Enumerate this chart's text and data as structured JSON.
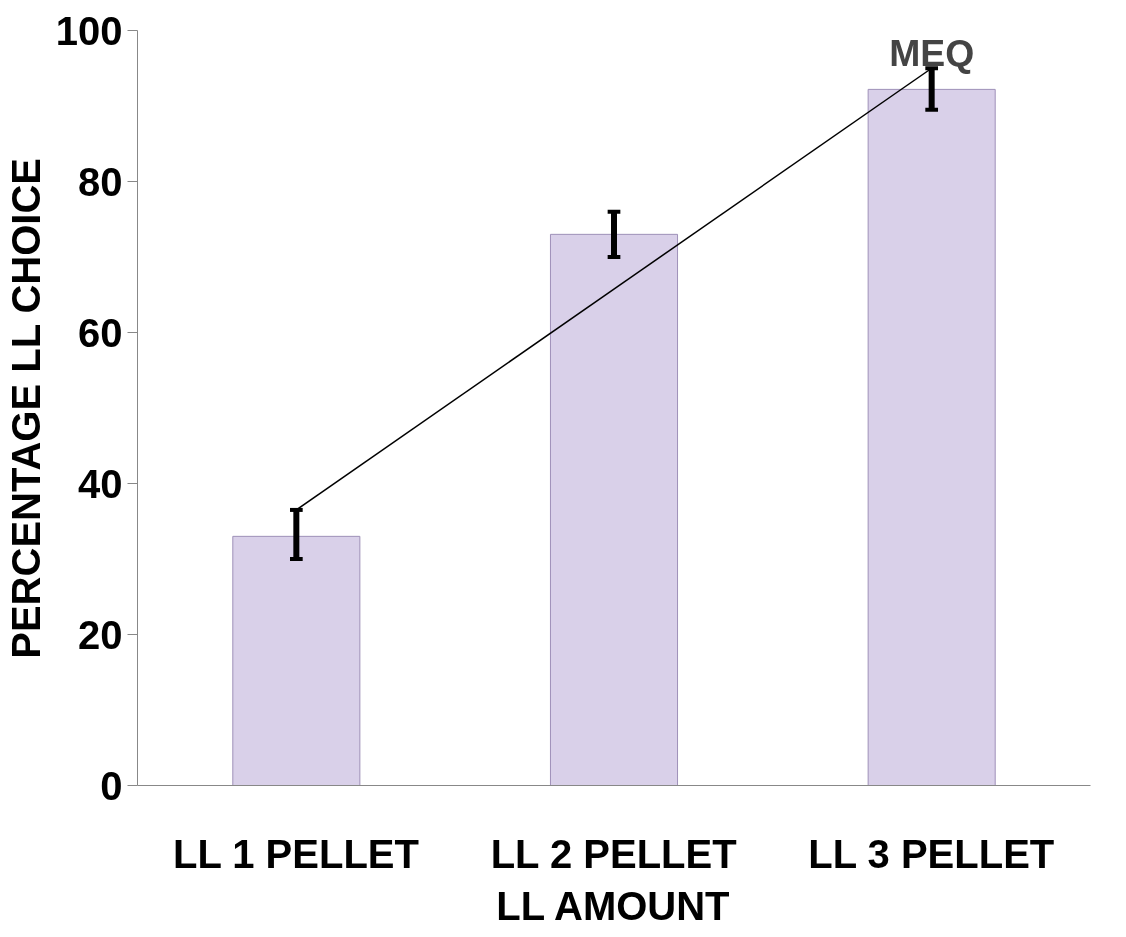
{
  "chart_data": {
    "type": "bar",
    "xlabel": "LL AMOUNT",
    "ylabel": "PERCENTAGE LL CHOICE",
    "categories": [
      "LL 1 PELLET",
      "LL 2 PELLET",
      "LL 3 PELLET"
    ],
    "series": [
      {
        "color": "#d9d0e9",
        "values": [
          33,
          73,
          92.2
        ],
        "errors": [
          [
            30,
            36.5
          ],
          [
            70,
            76
          ],
          [
            89.5,
            95
          ]
        ]
      },
      {
        "type": "line",
        "color": "#000000",
        "x": [
          "LL 1 PELLET",
          "LL 3 PELLET"
        ],
        "values": [
          36.5,
          95
        ]
      }
    ],
    "ylim": [
      0,
      100
    ],
    "yticks": [
      0,
      20,
      40,
      60,
      80,
      100
    ],
    "grid": false,
    "marker": "none",
    "line_style": "solid",
    "annotations": [
      "MEQ"
    ]
  }
}
